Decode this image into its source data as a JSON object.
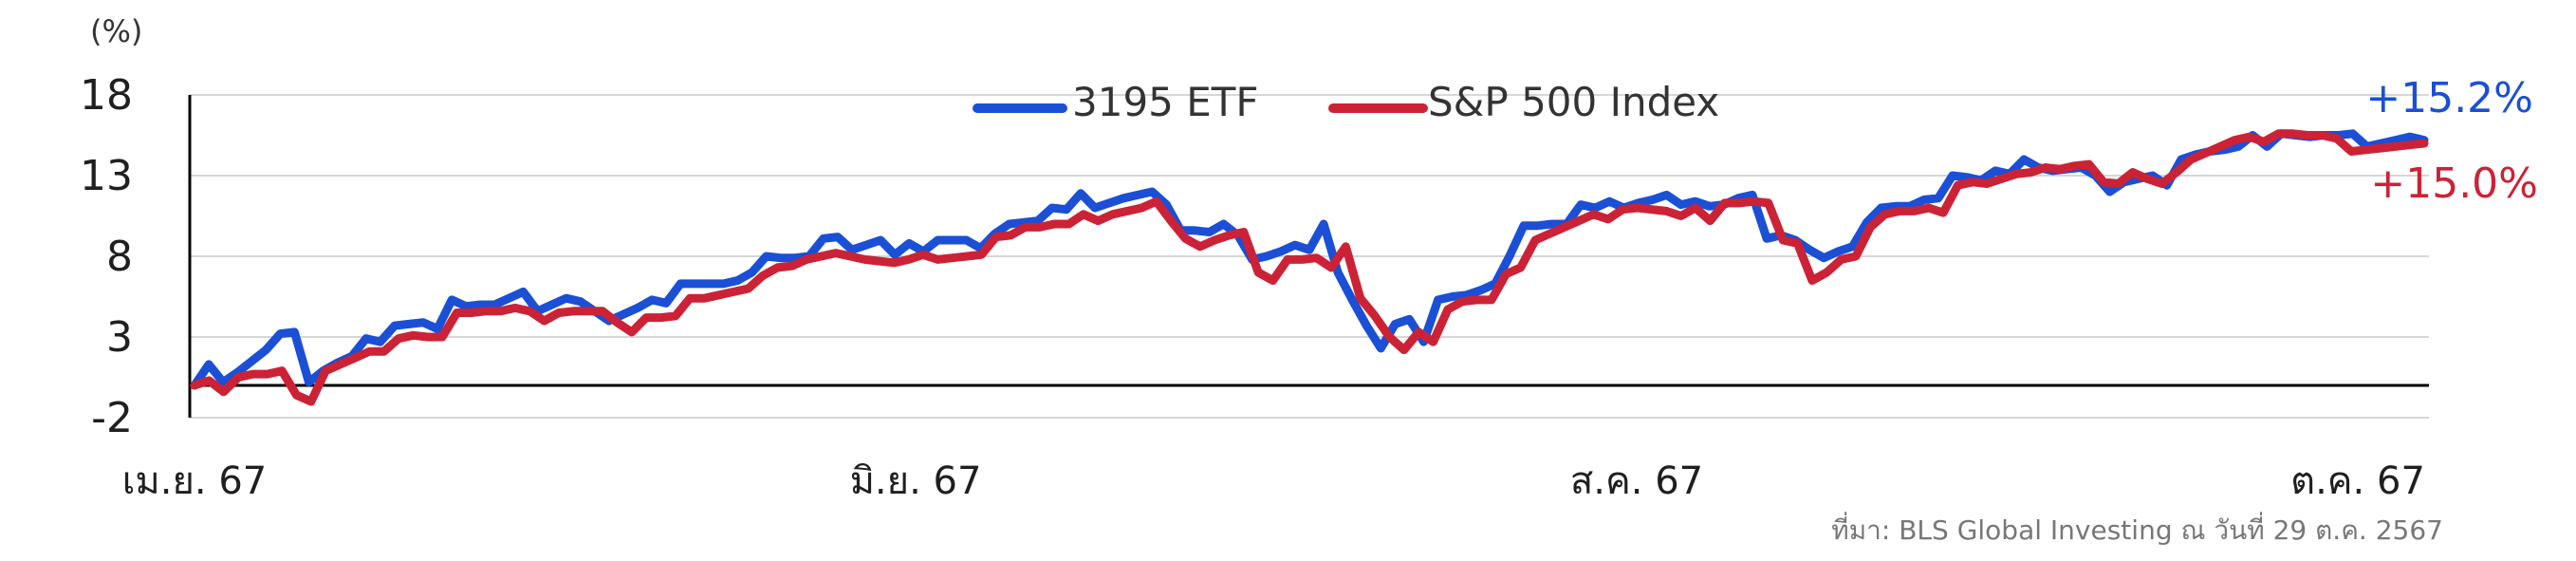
{
  "chart_data": {
    "type": "line",
    "title": "",
    "ylabel": "",
    "y_unit": "(%)",
    "ylim": [
      -2,
      18
    ],
    "y_ticks": [
      -2,
      3,
      8,
      13,
      18
    ],
    "grid": true,
    "legend_position": "top-center",
    "x_labels": [
      "เม.ย. 67",
      "มิ.ย. 67",
      "ส.ค. 67",
      "ต.ค. 67"
    ],
    "source": "ที่มา: BLS Global Investing ณ วันที่ 29 ต.ค. 2567",
    "series": [
      {
        "name": "3195 ETF",
        "color": "#1a4fd6",
        "end_label": "+15.2%",
        "values": [
          0,
          1.3,
          0.2,
          0.8,
          1.5,
          2.2,
          3.2,
          3.3,
          0.2,
          0.9,
          1.4,
          1.8,
          2.9,
          2.7,
          3.7,
          3.8,
          3.9,
          3.5,
          5.3,
          4.9,
          5.0,
          5.0,
          5.4,
          5.8,
          4.6,
          5.0,
          5.4,
          5.2,
          4.6,
          4.0,
          4.4,
          4.8,
          5.3,
          5.1,
          6.3,
          6.3,
          6.3,
          6.3,
          6.5,
          7.0,
          8.0,
          7.9,
          7.9,
          8.0,
          9.1,
          9.2,
          8.4,
          8.7,
          9.0,
          8.1,
          8.8,
          8.3,
          9.0,
          9.0,
          9.0,
          8.5,
          9.4,
          10.0,
          10.1,
          10.2,
          11.0,
          10.9,
          11.9,
          11.0,
          11.3,
          11.6,
          11.8,
          12.0,
          11.2,
          9.6,
          9.6,
          9.5,
          10.0,
          9.3,
          7.8,
          8.0,
          8.3,
          8.7,
          8.4,
          10.0,
          7.0,
          5.3,
          3.7,
          2.3,
          3.8,
          4.1,
          2.7,
          5.3,
          5.5,
          5.6,
          5.9,
          6.3,
          8.0,
          9.9,
          9.9,
          10.0,
          10.0,
          11.2,
          11.0,
          11.4,
          11.0,
          11.3,
          11.5,
          11.8,
          11.2,
          11.4,
          11.1,
          11.2,
          11.6,
          11.8,
          9.1,
          9.3,
          9.0,
          8.4,
          7.9,
          8.3,
          8.6,
          10.1,
          11.0,
          11.1,
          11.1,
          11.5,
          11.6,
          13.0,
          12.9,
          12.7,
          13.3,
          13.1,
          14.0,
          13.5,
          13.3,
          13.4,
          13.5,
          13.0,
          12.0,
          12.6,
          12.8,
          13.0,
          12.4,
          14.0,
          14.3,
          14.5,
          14.6,
          14.8,
          15.5,
          14.8,
          15.6,
          15.5,
          15.4,
          15.5,
          15.5,
          15.6,
          14.8,
          15.0,
          15.2,
          15.4,
          15.2
        ]
      },
      {
        "name": "S&P 500 Index",
        "color": "#cc2236",
        "end_label": "+15.0%",
        "values": [
          0,
          0.3,
          -0.4,
          0.5,
          0.7,
          0.7,
          0.9,
          -0.6,
          -1.0,
          0.9,
          1.3,
          1.7,
          2.1,
          2.1,
          2.9,
          3.1,
          3.0,
          3.0,
          4.5,
          4.5,
          4.6,
          4.6,
          4.8,
          4.6,
          4.0,
          4.5,
          4.6,
          4.6,
          4.6,
          3.9,
          3.3,
          4.2,
          4.2,
          4.3,
          5.4,
          5.4,
          5.6,
          5.8,
          6.0,
          6.8,
          7.3,
          7.4,
          7.8,
          8.0,
          8.2,
          8.0,
          7.8,
          7.7,
          7.6,
          7.8,
          8.1,
          7.8,
          7.9,
          8.0,
          8.1,
          9.2,
          9.3,
          9.8,
          9.8,
          10.0,
          10.0,
          10.6,
          10.2,
          10.6,
          10.8,
          11.0,
          11.4,
          10.2,
          9.1,
          8.6,
          9.0,
          9.3,
          9.5,
          7.0,
          6.5,
          7.8,
          7.8,
          7.9,
          7.3,
          8.6,
          5.4,
          4.3,
          3.0,
          2.2,
          3.3,
          2.7,
          4.7,
          5.2,
          5.3,
          5.3,
          6.9,
          7.3,
          9.0,
          9.4,
          9.8,
          10.2,
          10.6,
          10.3,
          10.9,
          11.0,
          10.9,
          10.8,
          10.5,
          11.0,
          10.2,
          11.3,
          11.3,
          11.4,
          11.3,
          9.0,
          8.8,
          6.5,
          7.0,
          7.8,
          8.0,
          9.8,
          10.6,
          10.8,
          10.8,
          11.0,
          10.7,
          12.4,
          12.6,
          12.5,
          12.8,
          13.1,
          13.2,
          13.5,
          13.4,
          13.6,
          13.7,
          12.6,
          12.5,
          13.2,
          12.8,
          12.5,
          13.2,
          14.0,
          14.4,
          14.8,
          15.2,
          15.4,
          15.1,
          15.6,
          15.6,
          15.5,
          15.5,
          15.3,
          14.5,
          14.6,
          14.7,
          14.8,
          14.9,
          15.0
        ]
      }
    ]
  }
}
